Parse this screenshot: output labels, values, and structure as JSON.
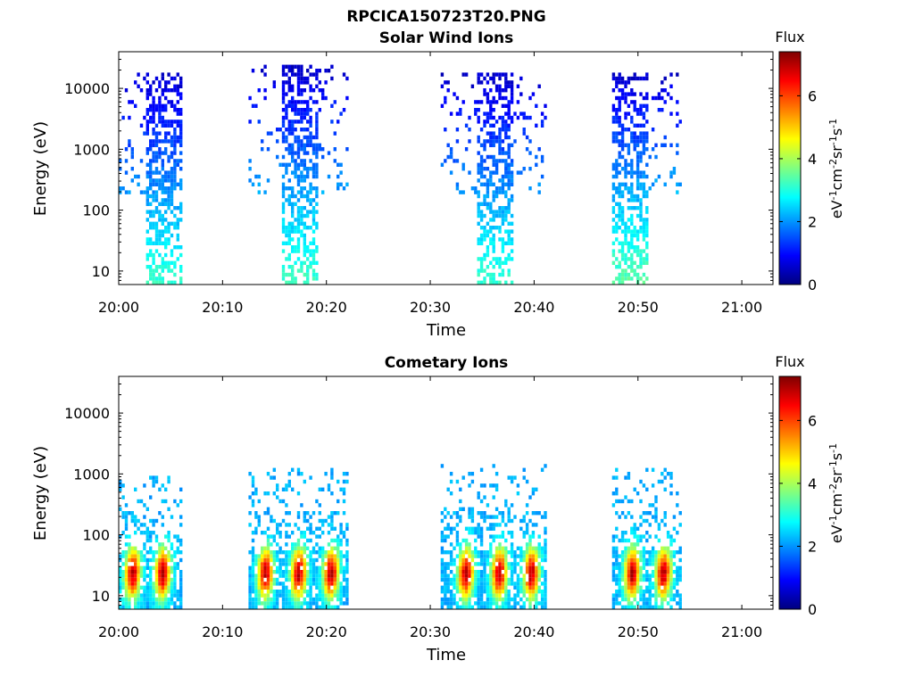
{
  "figure": {
    "title": "RPCICA150723T20.PNG"
  },
  "colorbar": {
    "label": "Flux",
    "unit_parts": [
      "eV",
      "-1",
      "cm",
      "-2",
      "sr",
      "-1",
      "s",
      "-1"
    ],
    "ticks": [
      "0",
      "2",
      "4",
      "6"
    ],
    "range": [
      0,
      7.4
    ],
    "colormap": "jet"
  },
  "chart_data": [
    {
      "type": "heatmap",
      "title": "Solar Wind Ions",
      "xlabel": "Time",
      "ylabel": "Energy (eV)",
      "y_scale": "log",
      "ylim": [
        6,
        40000
      ],
      "xlim": [
        "20:00",
        "21:03"
      ],
      "x_ticks": [
        "20:00",
        "20:10",
        "20:20",
        "20:30",
        "20:40",
        "20:50",
        "21:00"
      ],
      "y_ticks": [
        "10",
        "100",
        "1000",
        "10000"
      ],
      "bursts": [
        {
          "start": "20:00",
          "end": "20:06",
          "core_start": "20:02.5",
          "core_end": "20:06",
          "max_energy": 15000,
          "peak_flux": 3.2
        },
        {
          "start": "20:12.5",
          "end": "20:22",
          "core_start": "20:15.5",
          "core_end": "20:19",
          "max_energy": 20000,
          "peak_flux": 3.3
        },
        {
          "start": "20:31",
          "end": "20:41",
          "core_start": "20:34.5",
          "core_end": "20:38",
          "max_energy": 15000,
          "peak_flux": 3.2
        },
        {
          "start": "20:47.5",
          "end": "20:54",
          "core_start": "20:47.5",
          "core_end": "20:51",
          "max_energy": 15000,
          "peak_flux": 3.5
        }
      ]
    },
    {
      "type": "heatmap",
      "title": "Cometary Ions",
      "xlabel": "Time",
      "ylabel": "Energy (eV)",
      "y_scale": "log",
      "ylim": [
        6,
        40000
      ],
      "xlim": [
        "20:00",
        "21:03"
      ],
      "x_ticks": [
        "20:00",
        "20:10",
        "20:20",
        "20:30",
        "20:40",
        "20:50",
        "21:00"
      ],
      "y_ticks": [
        "10",
        "100",
        "1000",
        "10000"
      ],
      "bursts": [
        {
          "start": "20:00",
          "end": "20:06",
          "hot_columns": [
            "20:01.2",
            "20:04.1"
          ],
          "max_energy": 800,
          "peak_flux": 7.0
        },
        {
          "start": "20:12.5",
          "end": "20:22",
          "hot_columns": [
            "20:14.0",
            "20:17.2",
            "20:20.3"
          ],
          "max_energy": 1000,
          "peak_flux": 7.0
        },
        {
          "start": "20:31",
          "end": "20:41",
          "hot_columns": [
            "20:33.3",
            "20:36.5",
            "20:39.6"
          ],
          "max_energy": 1200,
          "peak_flux": 7.0
        },
        {
          "start": "20:47.5",
          "end": "20:54",
          "hot_columns": [
            "20:49.3",
            "20:52.3"
          ],
          "max_energy": 1000,
          "peak_flux": 7.0
        }
      ]
    }
  ]
}
